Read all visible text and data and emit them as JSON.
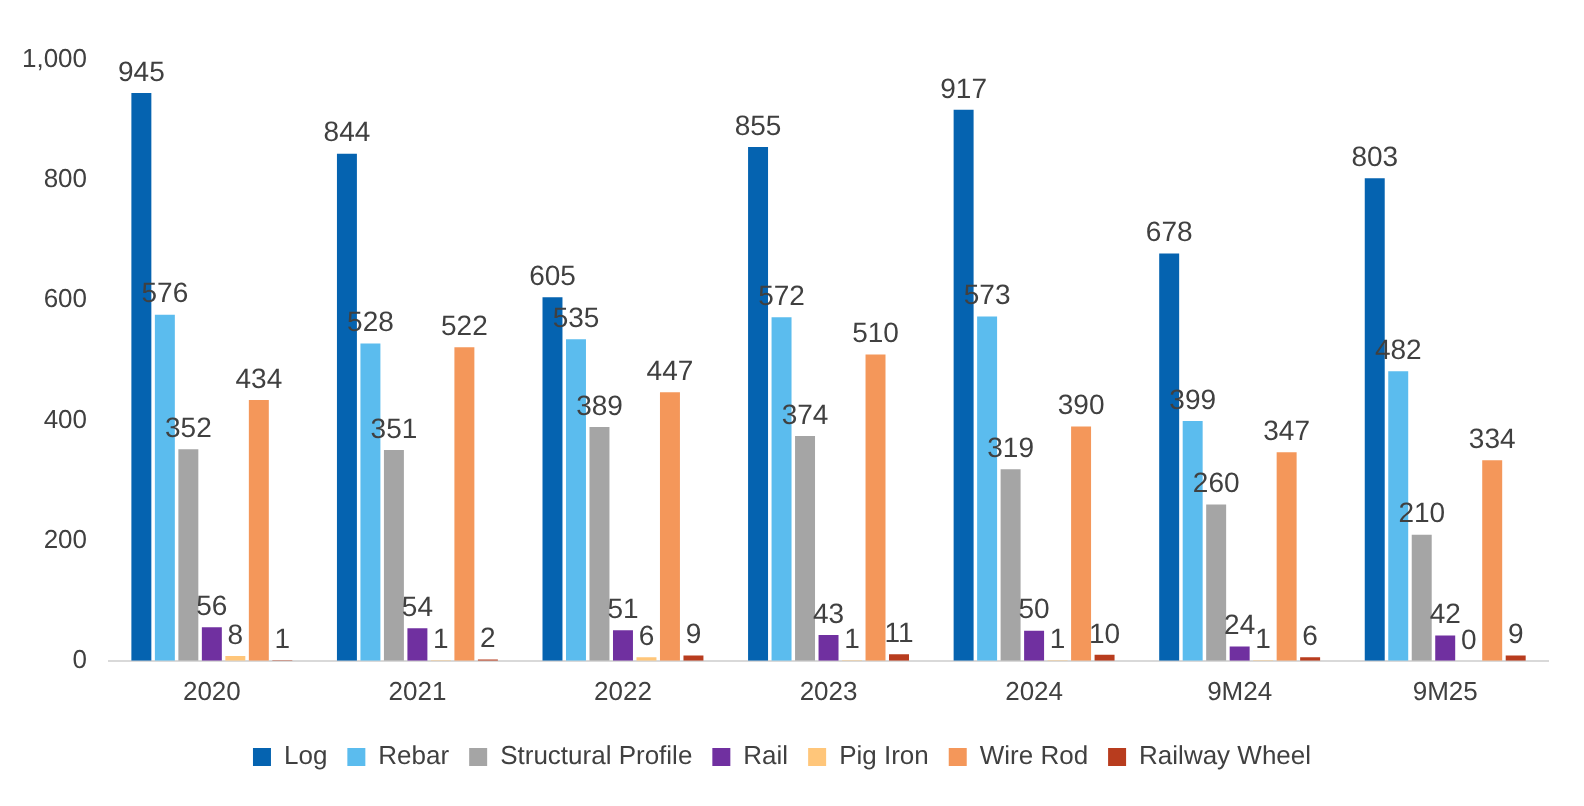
{
  "chart_data": {
    "type": "bar",
    "categories": [
      "2020",
      "2021",
      "2022",
      "2023",
      "2024",
      "9M24",
      "9M25"
    ],
    "series": [
      {
        "name": "Log",
        "color": "#0563b0",
        "values": [
          945,
          844,
          605,
          855,
          917,
          678,
          803
        ]
      },
      {
        "name": "Rebar",
        "color": "#5bbcee",
        "values": [
          576,
          528,
          535,
          572,
          573,
          399,
          482
        ]
      },
      {
        "name": "Structural Profile",
        "color": "#a5a5a5",
        "values": [
          352,
          351,
          389,
          374,
          319,
          260,
          210
        ]
      },
      {
        "name": "Rail",
        "color": "#7030a0",
        "values": [
          56,
          54,
          51,
          43,
          50,
          24,
          42
        ]
      },
      {
        "name": "Pig Iron",
        "color": "#ffc67a",
        "values": [
          8,
          1,
          6,
          1,
          1,
          1,
          0
        ]
      },
      {
        "name": "Wire Rod",
        "color": "#f4975a",
        "values": [
          434,
          522,
          447,
          510,
          390,
          347,
          334
        ]
      },
      {
        "name": "Railway Wheel",
        "color": "#b83c1e",
        "values": [
          1,
          2,
          9,
          11,
          10,
          6,
          9
        ]
      }
    ],
    "ylim": [
      0,
      1000
    ],
    "yticks": [
      0,
      200,
      400,
      600,
      800,
      {
        "value": 1000,
        "label": "1,000"
      }
    ],
    "grid": false,
    "legend": "bottom",
    "data_labels": true
  }
}
